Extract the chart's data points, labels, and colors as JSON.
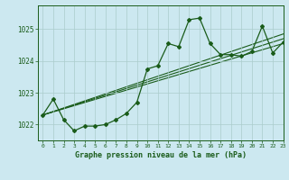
{
  "title": "Graphe pression niveau de la mer (hPa)",
  "background_color": "#cce8f0",
  "grid_color": "#aacccc",
  "line_color": "#1a5c1a",
  "xlim": [
    -0.5,
    23
  ],
  "ylim": [
    1021.5,
    1025.75
  ],
  "yticks": [
    1022,
    1023,
    1024,
    1025
  ],
  "xtick_labels": [
    "0",
    "1",
    "2",
    "3",
    "4",
    "5",
    "6",
    "7",
    "8",
    "9",
    "10",
    "11",
    "12",
    "13",
    "14",
    "15",
    "16",
    "17",
    "18",
    "19",
    "20",
    "21",
    "22",
    "23"
  ],
  "main_series": {
    "x": [
      0,
      1,
      2,
      3,
      4,
      5,
      6,
      7,
      8,
      9,
      10,
      11,
      12,
      13,
      14,
      15,
      16,
      17,
      18,
      19,
      20,
      21,
      22,
      23
    ],
    "y": [
      1022.3,
      1022.8,
      1022.15,
      1021.8,
      1021.95,
      1021.95,
      1022.0,
      1022.15,
      1022.35,
      1022.7,
      1023.75,
      1023.85,
      1024.55,
      1024.45,
      1025.3,
      1025.35,
      1024.55,
      1024.2,
      1024.2,
      1024.15,
      1024.3,
      1025.1,
      1024.25,
      1024.6
    ]
  },
  "trend_lines": [
    {
      "x": [
        0,
        23
      ],
      "y": [
        1022.3,
        1024.55
      ]
    },
    {
      "x": [
        0,
        23
      ],
      "y": [
        1022.3,
        1024.7
      ]
    },
    {
      "x": [
        0,
        23
      ],
      "y": [
        1022.3,
        1024.85
      ]
    }
  ]
}
